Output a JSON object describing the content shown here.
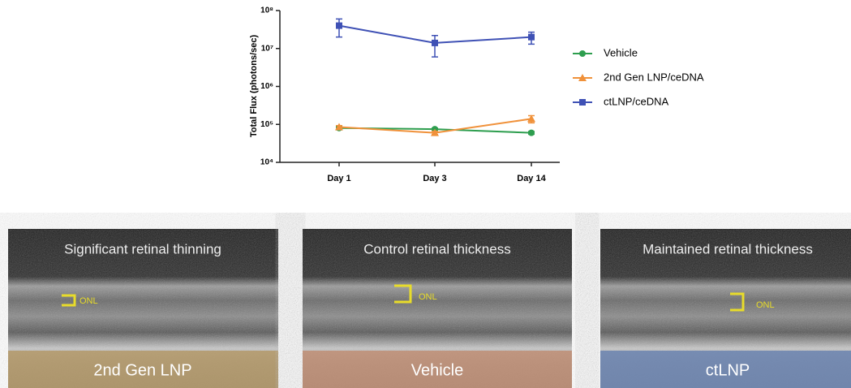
{
  "chart_data": {
    "type": "line",
    "y_label": "Total Flux (photons/sec)",
    "categories": [
      "Day 1",
      "Day 3",
      "Day 14"
    ],
    "log_scale": true,
    "ylim": [
      10000,
      100000000
    ],
    "yticks": [
      {
        "value": 10000,
        "label": "10⁴"
      },
      {
        "value": 100000,
        "label": "10⁵"
      },
      {
        "value": 1000000,
        "label": "10⁶"
      },
      {
        "value": 10000000,
        "label": "10⁷"
      },
      {
        "value": 100000000,
        "label": "10⁸"
      }
    ],
    "legend": "right",
    "series": [
      {
        "name": "Vehicle",
        "color": "#2e9e4f",
        "marker": "circle",
        "values": [
          80000,
          75000,
          60000
        ],
        "errors": [
          8000,
          5000,
          5000
        ]
      },
      {
        "name": "2nd Gen LNP/ceDNA",
        "color": "#f0913a",
        "marker": "triangle",
        "values": [
          85000,
          60000,
          140000
        ],
        "errors": [
          8000,
          6000,
          30000
        ]
      },
      {
        "name": "ctLNP/ceDNA",
        "color": "#3f51b5",
        "marker": "square",
        "values": [
          40000000,
          14000000,
          20000000
        ],
        "errors": [
          20000000,
          8000000,
          7000000
        ]
      }
    ]
  },
  "panels": [
    {
      "title": "Significant retinal thinning",
      "layer": "ONL",
      "label": "2nd Gen LNP"
    },
    {
      "title": "Control retinal thickness",
      "layer": "ONL",
      "label": "Vehicle"
    },
    {
      "title": "Maintained retinal thickness",
      "layer": "ONL",
      "label": "ctLNP"
    }
  ]
}
